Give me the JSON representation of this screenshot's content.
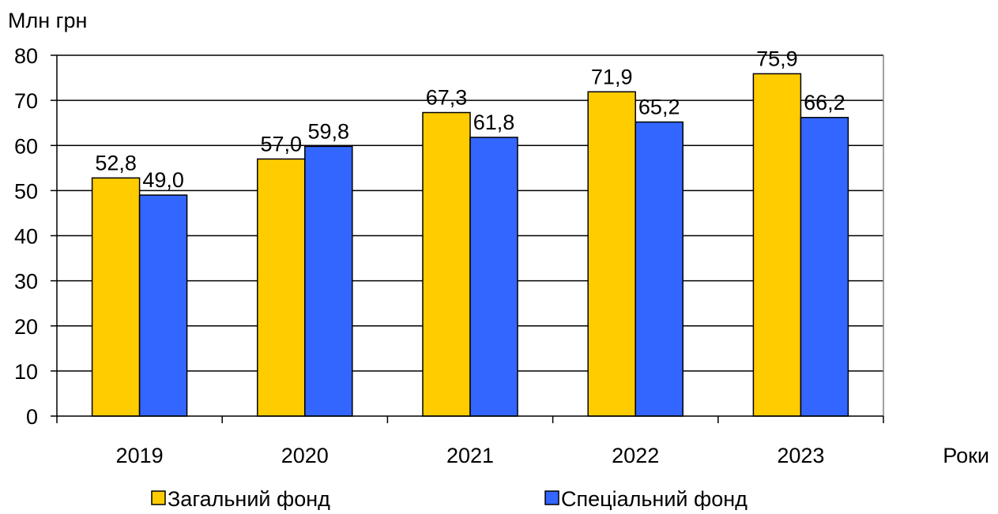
{
  "chart_data": {
    "type": "bar",
    "title": "",
    "ylabel": "Млн грн",
    "xlabel": "Роки",
    "categories": [
      "2019",
      "2020",
      "2021",
      "2022",
      "2023"
    ],
    "series": [
      {
        "name": "Загальний фонд",
        "color": "#FFCC00",
        "values": [
          52.8,
          57.0,
          67.3,
          71.9,
          75.9
        ],
        "labels": [
          "52,8",
          "57,0",
          "67,3",
          "71,9",
          "75,9"
        ]
      },
      {
        "name": "Спеціальний фонд",
        "color": "#3366FF",
        "values": [
          49.0,
          59.8,
          61.8,
          65.2,
          66.2
        ],
        "labels": [
          "49,0",
          "59,8",
          "61,8",
          "65,2",
          "66,2"
        ]
      }
    ],
    "ylim": [
      0,
      80
    ],
    "yticks": [
      0,
      10,
      20,
      30,
      40,
      50,
      60,
      70,
      80
    ],
    "ytick_labels": [
      "0",
      "10",
      "20",
      "30",
      "40",
      "50",
      "60",
      "70",
      "80"
    ],
    "grid": true,
    "legend_position": "bottom"
  }
}
